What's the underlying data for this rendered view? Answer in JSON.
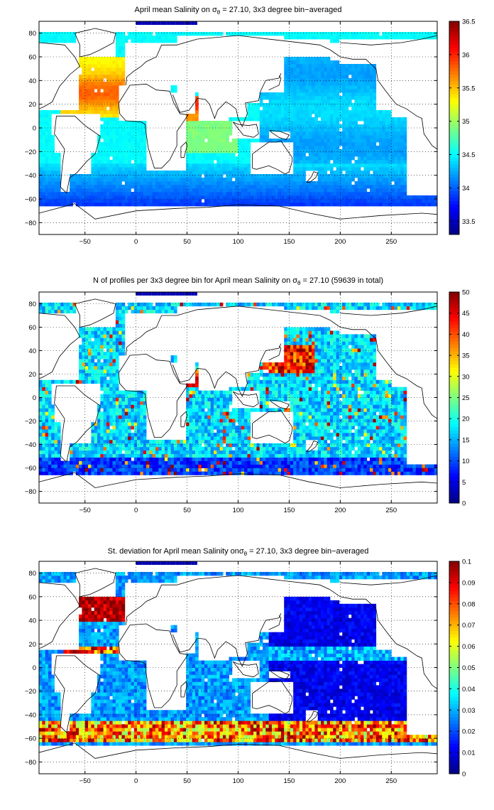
{
  "chart_data": [
    {
      "type": "heatmap",
      "title_prefix": "April mean Salinity on ",
      "title_sigma": "σ",
      "title_sub": "θ",
      "title_suffix": " = 27.10, 3x3 degree bin−averaged",
      "xlim": [
        -95,
        295
      ],
      "ylim": [
        -90,
        90
      ],
      "xticks": [
        -50,
        0,
        50,
        100,
        150,
        200,
        250
      ],
      "yticks": [
        80,
        60,
        40,
        20,
        0,
        -20,
        -40,
        -60,
        -80
      ],
      "grid": true,
      "colorbar": {
        "min": 33.3,
        "max": 36.5,
        "ticks": [
          "36.5",
          "36",
          "35.5",
          "35",
          "34.5",
          "34",
          "33.5"
        ],
        "tick_values": [
          36.5,
          36,
          35.5,
          35,
          34.5,
          34,
          33.5
        ]
      },
      "colormap": "jet",
      "field": "salinity"
    },
    {
      "type": "heatmap",
      "title_prefix": "N of profiles per 3x3 degree bin for April mean Salinity on ",
      "title_sigma": "σ",
      "title_sub": "θ",
      "title_suffix": " = 27.10 (59639 in total)",
      "xlim": [
        -95,
        295
      ],
      "ylim": [
        -90,
        90
      ],
      "xticks": [
        -50,
        0,
        50,
        100,
        150,
        200,
        250
      ],
      "yticks": [
        80,
        60,
        40,
        20,
        0,
        -20,
        -40,
        -60,
        -80
      ],
      "grid": true,
      "colorbar": {
        "min": 0,
        "max": 50,
        "ticks": [
          "50",
          "45",
          "40",
          "35",
          "30",
          "25",
          "20",
          "15",
          "10",
          "5",
          "0"
        ],
        "tick_values": [
          50,
          45,
          40,
          35,
          30,
          25,
          20,
          15,
          10,
          5,
          0
        ]
      },
      "colormap": "jet",
      "field": "count"
    },
    {
      "type": "heatmap",
      "title_prefix": "St. deviation for April mean Salinity on",
      "title_sigma": "σ",
      "title_sub": "θ",
      "title_suffix": " = 27.10, 3x3 degree bin−averaged",
      "xlim": [
        -95,
        295
      ],
      "ylim": [
        -90,
        90
      ],
      "xticks": [
        -50,
        0,
        50,
        100,
        150,
        200,
        250
      ],
      "yticks": [
        80,
        60,
        40,
        20,
        0,
        -20,
        -40,
        -60,
        -80
      ],
      "grid": true,
      "colorbar": {
        "min": 0,
        "max": 0.1,
        "ticks": [
          "0.1",
          "0.09",
          "0.08",
          "0.07",
          "0.06",
          "0.05",
          "0.04",
          "0.03",
          "0.02",
          "0.01",
          "0"
        ],
        "tick_values": [
          0.1,
          0.09,
          0.08,
          0.07,
          0.06,
          0.05,
          0.04,
          0.03,
          0.02,
          0.01,
          0
        ]
      },
      "colormap": "jet",
      "field": "stdev"
    }
  ]
}
